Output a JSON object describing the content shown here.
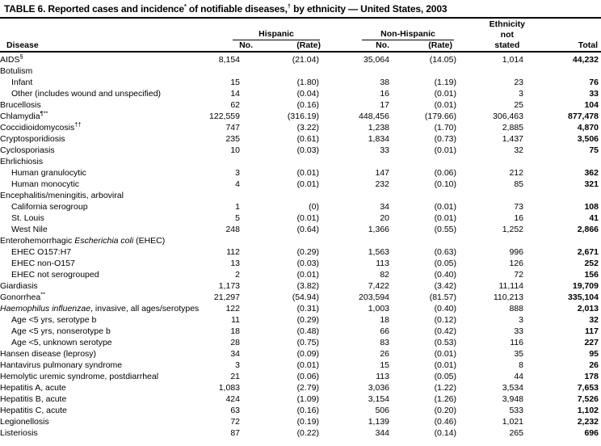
{
  "title": {
    "parts": [
      {
        "t": "TABLE 6. Reported cases and incidence"
      },
      {
        "t": "*",
        "sup": true
      },
      {
        "t": " of notifiable diseases,"
      },
      {
        "t": "†",
        "sup": true
      },
      {
        "t": " by ethnicity — United States, 2003"
      }
    ]
  },
  "table": {
    "header": {
      "disease": "Disease",
      "hispanic": "Hispanic",
      "non_hispanic": "Non-Hispanic",
      "no1": "No.",
      "rate1": "(Rate)",
      "no2": "No.",
      "rate2": "(Rate)",
      "ethnicity_not_stated": "Ethnicity\nnot\nstated",
      "total": "Total"
    },
    "rows": [
      {
        "name": [
          {
            "t": "AIDS"
          },
          {
            "t": "§",
            "sup": true
          }
        ],
        "no1": "8,154",
        "rate1": "(21.04)",
        "no2": "35,064",
        "rate2": "(14.05)",
        "eth": "1,014",
        "total": "44,232"
      },
      {
        "name": [
          {
            "t": "Botulism"
          }
        ],
        "category": true
      },
      {
        "name": [
          {
            "t": "Infant"
          }
        ],
        "indent": true,
        "no1": "15",
        "rate1": "(1.80)",
        "no2": "38",
        "rate2": "(1.19)",
        "eth": "23",
        "total": "76"
      },
      {
        "name": [
          {
            "t": "Other (includes wound and unspecified)"
          }
        ],
        "indent": true,
        "no1": "14",
        "rate1": "(0.04)",
        "no2": "16",
        "rate2": "(0.01)",
        "eth": "3",
        "total": "33"
      },
      {
        "name": [
          {
            "t": "Brucellosis"
          }
        ],
        "no1": "62",
        "rate1": "(0.16)",
        "no2": "17",
        "rate2": "(0.01)",
        "eth": "25",
        "total": "104"
      },
      {
        "name": [
          {
            "t": "Chlamydia"
          },
          {
            "t": "¶**",
            "sup": true
          }
        ],
        "no1": "122,559",
        "rate1": "(316.19)",
        "no2": "448,456",
        "rate2": "(179.66)",
        "eth": "306,463",
        "total": "877,478"
      },
      {
        "name": [
          {
            "t": "Coccidioidomycosis"
          },
          {
            "t": "††",
            "sup": true
          }
        ],
        "no1": "747",
        "rate1": "(3.22)",
        "no2": "1,238",
        "rate2": "(1.70)",
        "eth": "2,885",
        "total": "4,870"
      },
      {
        "name": [
          {
            "t": "Cryptosporidiosis"
          }
        ],
        "no1": "235",
        "rate1": "(0.61)",
        "no2": "1,834",
        "rate2": "(0.73)",
        "eth": "1,437",
        "total": "3,506"
      },
      {
        "name": [
          {
            "t": "Cyclosporiasis"
          }
        ],
        "no1": "10",
        "rate1": "(0.03)",
        "no2": "33",
        "rate2": "(0.01)",
        "eth": "32",
        "total": "75"
      },
      {
        "name": [
          {
            "t": "Ehrlichiosis"
          }
        ],
        "category": true
      },
      {
        "name": [
          {
            "t": "Human granulocytic"
          }
        ],
        "indent": true,
        "no1": "3",
        "rate1": "(0.01)",
        "no2": "147",
        "rate2": "(0.06)",
        "eth": "212",
        "total": "362"
      },
      {
        "name": [
          {
            "t": "Human monocytic"
          }
        ],
        "indent": true,
        "no1": "4",
        "rate1": "(0.01)",
        "no2": "232",
        "rate2": "(0.10)",
        "eth": "85",
        "total": "321"
      },
      {
        "name": [
          {
            "t": "Encephalitis/meningitis, arboviral"
          }
        ],
        "category": true
      },
      {
        "name": [
          {
            "t": "California serogroup"
          }
        ],
        "indent": true,
        "no1": "1",
        "rate1": "(0)",
        "no2": "34",
        "rate2": "(0.01)",
        "eth": "73",
        "total": "108"
      },
      {
        "name": [
          {
            "t": "St. Louis"
          }
        ],
        "indent": true,
        "no1": "5",
        "rate1": "(0.01)",
        "no2": "20",
        "rate2": "(0.01)",
        "eth": "16",
        "total": "41"
      },
      {
        "name": [
          {
            "t": "West Nile"
          }
        ],
        "indent": true,
        "no1": "248",
        "rate1": "(0.64)",
        "no2": "1,366",
        "rate2": "(0.55)",
        "eth": "1,252",
        "total": "2,866"
      },
      {
        "name": [
          {
            "t": "Enterohemorrhagic "
          },
          {
            "t": "Escherichia coli",
            "i": true
          },
          {
            "t": " (EHEC)"
          }
        ],
        "category": true
      },
      {
        "name": [
          {
            "t": "EHEC O157:H7"
          }
        ],
        "indent": true,
        "no1": "112",
        "rate1": "(0.29)",
        "no2": "1,563",
        "rate2": "(0.63)",
        "eth": "996",
        "total": "2,671"
      },
      {
        "name": [
          {
            "t": "EHEC non-O157"
          }
        ],
        "indent": true,
        "no1": "13",
        "rate1": "(0.03)",
        "no2": "113",
        "rate2": "(0.05)",
        "eth": "126",
        "total": "252"
      },
      {
        "name": [
          {
            "t": "EHEC not serogrouped"
          }
        ],
        "indent": true,
        "no1": "2",
        "rate1": "(0.01)",
        "no2": "82",
        "rate2": "(0.40)",
        "eth": "72",
        "total": "156"
      },
      {
        "name": [
          {
            "t": "Giardiasis"
          }
        ],
        "no1": "1,173",
        "rate1": "(3.82)",
        "no2": "7,422",
        "rate2": "(3.42)",
        "eth": "11,114",
        "total": "19,709"
      },
      {
        "name": [
          {
            "t": "Gonorrhea"
          },
          {
            "t": "**",
            "sup": true
          }
        ],
        "no1": "21,297",
        "rate1": "(54.94)",
        "no2": "203,594",
        "rate2": "(81.57)",
        "eth": "110,213",
        "total": "335,104"
      },
      {
        "name": [
          {
            "t": "Haemophilus influenzae",
            "i": true
          },
          {
            "t": ", invasive, all ages/serotypes"
          }
        ],
        "no1": "122",
        "rate1": "(0.31)",
        "no2": "1,003",
        "rate2": "(0.40)",
        "eth": "888",
        "total": "2,013"
      },
      {
        "name": [
          {
            "t": "Age <5 yrs, serotype b"
          }
        ],
        "indent": true,
        "no1": "11",
        "rate1": "(0.29)",
        "no2": "18",
        "rate2": "(0.12)",
        "eth": "3",
        "total": "32"
      },
      {
        "name": [
          {
            "t": "Age <5 yrs, nonserotype b"
          }
        ],
        "indent": true,
        "no1": "18",
        "rate1": "(0.48)",
        "no2": "66",
        "rate2": "(0.42)",
        "eth": "33",
        "total": "117"
      },
      {
        "name": [
          {
            "t": "Age <5, unknown serotype"
          }
        ],
        "indent": true,
        "no1": "28",
        "rate1": "(0.75)",
        "no2": "83",
        "rate2": "(0.53)",
        "eth": "116",
        "total": "227"
      },
      {
        "name": [
          {
            "t": "Hansen disease (leprosy)"
          }
        ],
        "no1": "34",
        "rate1": "(0.09)",
        "no2": "26",
        "rate2": "(0.01)",
        "eth": "35",
        "total": "95"
      },
      {
        "name": [
          {
            "t": "Hantavirus pulmonary syndrome"
          }
        ],
        "no1": "3",
        "rate1": "(0.01)",
        "no2": "15",
        "rate2": "(0.01)",
        "eth": "8",
        "total": "26"
      },
      {
        "name": [
          {
            "t": "Hemolytic uremic syndrome, postdiarrheal"
          }
        ],
        "no1": "21",
        "rate1": "(0.06)",
        "no2": "113",
        "rate2": "(0.05)",
        "eth": "44",
        "total": "178"
      },
      {
        "name": [
          {
            "t": "Hepatitis A, acute"
          }
        ],
        "no1": "1,083",
        "rate1": "(2.79)",
        "no2": "3,036",
        "rate2": "(1.22)",
        "eth": "3,534",
        "total": "7,653"
      },
      {
        "name": [
          {
            "t": "Hepatitis B, acute"
          }
        ],
        "no1": "424",
        "rate1": "(1.09)",
        "no2": "3,154",
        "rate2": "(1.26)",
        "eth": "3,948",
        "total": "7,526"
      },
      {
        "name": [
          {
            "t": "Hepatitis C, acute"
          }
        ],
        "no1": "63",
        "rate1": "(0.16)",
        "no2": "506",
        "rate2": "(0.20)",
        "eth": "533",
        "total": "1,102"
      },
      {
        "name": [
          {
            "t": "Legionellosis"
          }
        ],
        "no1": "72",
        "rate1": "(0.19)",
        "no2": "1,139",
        "rate2": "(0.46)",
        "eth": "1,021",
        "total": "2,232"
      },
      {
        "name": [
          {
            "t": "Listeriosis"
          }
        ],
        "no1": "87",
        "rate1": "(0.22)",
        "no2": "344",
        "rate2": "(0.14)",
        "eth": "265",
        "total": "696"
      }
    ]
  }
}
